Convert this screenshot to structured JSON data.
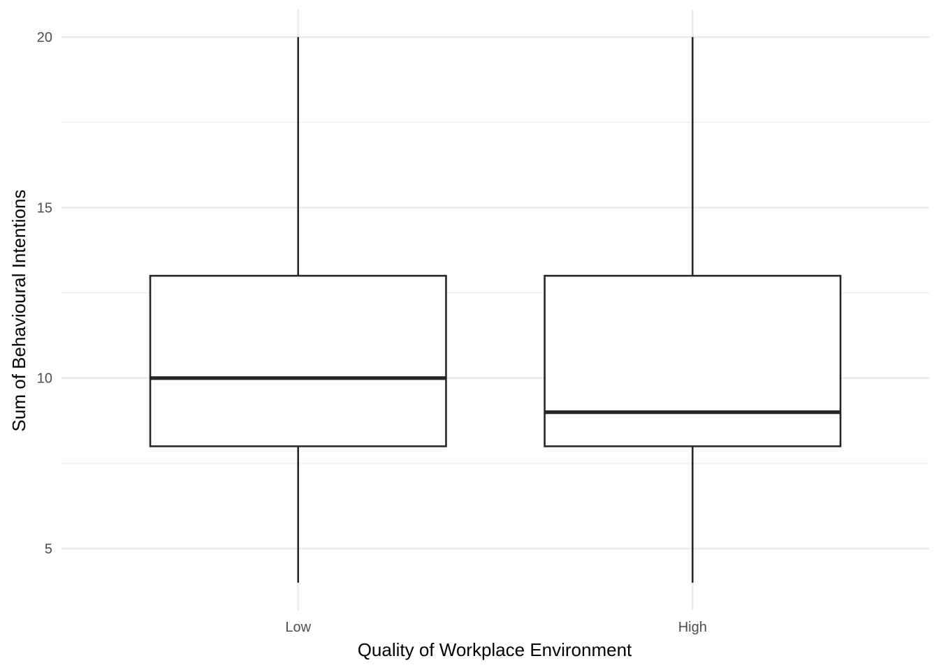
{
  "chart_data": {
    "type": "boxplot",
    "title": "",
    "xlabel": "Quality of Workplace Environment",
    "ylabel": "Sum of Behavioural Intentions",
    "categories": [
      "Low",
      "High"
    ],
    "boxes": [
      {
        "category": "Low",
        "min": 4,
        "q1": 8,
        "median": 10,
        "q3": 13,
        "max": 20
      },
      {
        "category": "High",
        "min": 4,
        "q1": 8,
        "median": 9,
        "q3": 13,
        "max": 20
      }
    ],
    "yticks": [
      5,
      10,
      15,
      20
    ],
    "ylim": [
      3.2,
      20.8
    ],
    "grid": true,
    "legend": "none",
    "colors": {
      "box_outline": "#262626",
      "grid": "#ebebeb",
      "box_fill": "#ffffff"
    }
  }
}
